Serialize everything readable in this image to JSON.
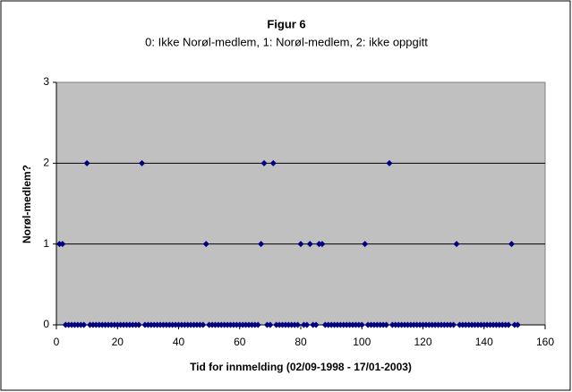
{
  "chart_data": {
    "type": "scatter",
    "title": "Figur 6",
    "subtitle": "0: Ikke Norøl-medlem, 1: Norøl-medlem, 2: ikke oppgitt",
    "x_label": "Tid for innmelding (02/09-1998 - 17/01-2003)",
    "y_label": "Norøl-medlem?",
    "color": "#000080",
    "plot_background": "#c0c0c0",
    "grid": true,
    "xlim": [
      0,
      160
    ],
    "xticks": [
      0,
      20,
      40,
      60,
      80,
      100,
      120,
      140,
      160
    ],
    "ylim": [
      0,
      3
    ],
    "yticks": [
      0,
      1,
      2,
      3
    ],
    "x": [
      1,
      2,
      3,
      4,
      5,
      6,
      7,
      8,
      9,
      10,
      11,
      12,
      13,
      14,
      15,
      16,
      17,
      18,
      19,
      20,
      21,
      22,
      23,
      24,
      25,
      26,
      27,
      28,
      29,
      30,
      31,
      32,
      33,
      34,
      35,
      36,
      37,
      38,
      39,
      40,
      41,
      42,
      43,
      44,
      45,
      46,
      47,
      48,
      49,
      50,
      51,
      52,
      53,
      54,
      55,
      56,
      57,
      58,
      59,
      60,
      61,
      62,
      63,
      64,
      65,
      66,
      67,
      68,
      69,
      70,
      71,
      72,
      73,
      74,
      75,
      76,
      77,
      78,
      79,
      80,
      81,
      82,
      83,
      84,
      85,
      86,
      87,
      88,
      89,
      90,
      91,
      92,
      93,
      94,
      95,
      96,
      97,
      98,
      99,
      100,
      101,
      102,
      103,
      104,
      105,
      106,
      107,
      108,
      109,
      110,
      111,
      112,
      113,
      114,
      115,
      116,
      117,
      118,
      119,
      120,
      121,
      122,
      123,
      124,
      125,
      126,
      127,
      128,
      129,
      130,
      131,
      132,
      133,
      134,
      135,
      136,
      137,
      138,
      139,
      140,
      141,
      142,
      143,
      144,
      145,
      146,
      147,
      148,
      149,
      150,
      151
    ],
    "values": [
      1,
      1,
      0,
      0,
      0,
      0,
      0,
      0,
      0,
      2,
      0,
      0,
      0,
      0,
      0,
      0,
      0,
      0,
      0,
      0,
      0,
      0,
      0,
      0,
      0,
      0,
      0,
      2,
      0,
      0,
      0,
      0,
      0,
      0,
      0,
      0,
      0,
      0,
      0,
      0,
      0,
      0,
      0,
      0,
      0,
      0,
      0,
      0,
      1,
      0,
      0,
      0,
      0,
      0,
      0,
      0,
      0,
      0,
      0,
      0,
      0,
      0,
      0,
      0,
      0,
      0,
      1,
      2,
      0,
      0,
      2,
      0,
      0,
      0,
      0,
      0,
      0,
      0,
      0,
      1,
      0,
      0,
      1,
      0,
      0,
      1,
      1,
      0,
      0,
      0,
      0,
      0,
      0,
      0,
      0,
      0,
      0,
      0,
      0,
      0,
      1,
      0,
      0,
      0,
      0,
      0,
      0,
      0,
      2,
      0,
      0,
      0,
      0,
      0,
      0,
      0,
      0,
      0,
      0,
      0,
      0,
      0,
      0,
      0,
      0,
      0,
      0,
      0,
      0,
      0,
      1,
      0,
      0,
      0,
      0,
      0,
      0,
      0,
      0,
      0,
      0,
      0,
      0,
      0,
      0,
      0,
      0,
      0,
      1,
      0,
      0
    ]
  }
}
